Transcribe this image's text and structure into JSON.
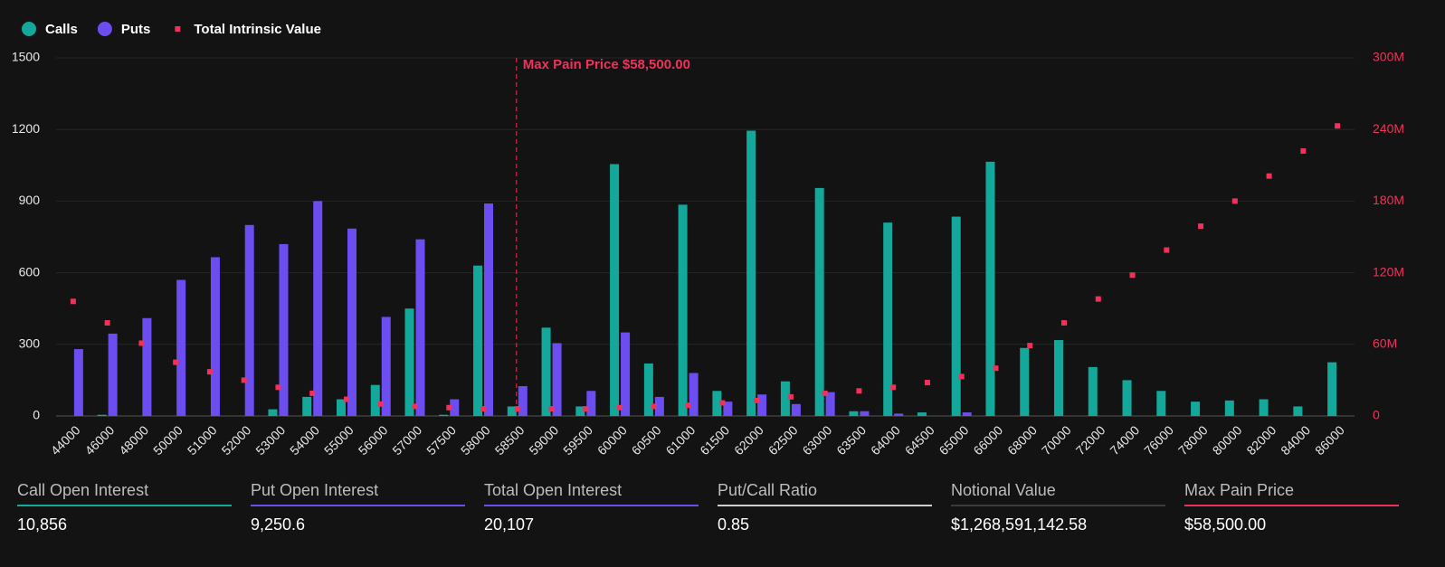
{
  "chart_data": {
    "type": "bar",
    "categories": [
      "44000",
      "46000",
      "48000",
      "50000",
      "51000",
      "52000",
      "53000",
      "54000",
      "55000",
      "56000",
      "57000",
      "57500",
      "58000",
      "58500",
      "59000",
      "59500",
      "60000",
      "60500",
      "61000",
      "61500",
      "62000",
      "62500",
      "63000",
      "63500",
      "64000",
      "64500",
      "65000",
      "66000",
      "68000",
      "70000",
      "72000",
      "74000",
      "76000",
      "78000",
      "80000",
      "82000",
      "84000",
      "86000"
    ],
    "series": [
      {
        "name": "Calls",
        "color": "#14a89a",
        "values": [
          0,
          5,
          0,
          0,
          0,
          0,
          28,
          80,
          70,
          130,
          450,
          5,
          630,
          40,
          370,
          40,
          1055,
          220,
          885,
          105,
          1195,
          145,
          955,
          20,
          810,
          15,
          835,
          1065,
          285,
          318,
          205,
          150,
          105,
          60,
          65,
          70,
          40,
          225
        ]
      },
      {
        "name": "Puts",
        "color": "#6c4ef0",
        "values": [
          280,
          345,
          410,
          570,
          665,
          800,
          720,
          900,
          785,
          415,
          740,
          70,
          890,
          125,
          305,
          105,
          350,
          80,
          180,
          60,
          90,
          50,
          100,
          20,
          10,
          0,
          15,
          0,
          0,
          0,
          0,
          0,
          0,
          0,
          0,
          0,
          0,
          0
        ]
      },
      {
        "name": "Total Intrinsic Value",
        "color": "#f0325a",
        "axis": "y2",
        "values": [
          96,
          78,
          61,
          45,
          37,
          30,
          24,
          19,
          14,
          10,
          8,
          7,
          6,
          6,
          6,
          6,
          7,
          8,
          9,
          11,
          13,
          16,
          19,
          21,
          24,
          28,
          33,
          40,
          59,
          78,
          98,
          118,
          139,
          159,
          180,
          201,
          222,
          243
        ]
      }
    ],
    "ylim": [
      0,
      1500
    ],
    "yticks": [
      0,
      300,
      600,
      900,
      1200,
      1500
    ],
    "y2lim": [
      0,
      300
    ],
    "y2ticks": [
      {
        "value": 0,
        "label": "0"
      },
      {
        "value": 60,
        "label": "60M"
      },
      {
        "value": 120,
        "label": "120M"
      },
      {
        "value": 180,
        "label": "180M"
      },
      {
        "value": 240,
        "label": "240M"
      },
      {
        "value": 300,
        "label": "300M"
      }
    ],
    "grid": true,
    "annotation": {
      "text": "Max Pain Price $58,500.00",
      "x": 58500,
      "color": "#f0325a"
    }
  },
  "stats": [
    {
      "label": "Call Open Interest",
      "value": "10,856",
      "color": "#14a89a"
    },
    {
      "label": "Put Open Interest",
      "value": "9,250.6",
      "color": "#6c4ef0"
    },
    {
      "label": "Total Open Interest",
      "value": "20,107",
      "color": "#6c4ef0"
    },
    {
      "label": "Put/Call Ratio",
      "value": "0.85",
      "color": "#cfcfcf"
    },
    {
      "label": "Notional Value",
      "value": "$1,268,591,142.58",
      "color": "#3a3a3a"
    },
    {
      "label": "Max Pain Price",
      "value": "$58,500.00",
      "color": "#f0325a"
    }
  ]
}
